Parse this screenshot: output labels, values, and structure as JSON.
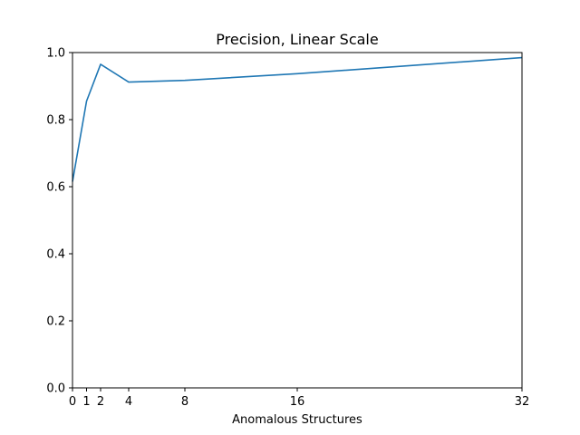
{
  "chart_data": {
    "type": "line",
    "title": "Precision, Linear Scale",
    "xlabel": "Anomalous Structures",
    "ylabel": "",
    "xlim": [
      0,
      32
    ],
    "ylim": [
      0.0,
      1.0
    ],
    "xticks": [
      0,
      1,
      2,
      4,
      8,
      16,
      32
    ],
    "xtick_labels": [
      "0",
      "1",
      "2",
      "4",
      "8",
      "16",
      "32"
    ],
    "yticks": [
      0.0,
      0.2,
      0.4,
      0.6,
      0.8,
      1.0
    ],
    "ytick_labels": [
      "0.0",
      "0.2",
      "0.4",
      "0.6",
      "0.8",
      "1.0"
    ],
    "grid": false,
    "series": [
      {
        "color": "#1f77b4",
        "x": [
          0,
          1,
          2,
          4,
          8,
          16,
          32
        ],
        "y": [
          0.615,
          0.855,
          0.965,
          0.912,
          0.917,
          0.937,
          0.985
        ]
      }
    ]
  }
}
